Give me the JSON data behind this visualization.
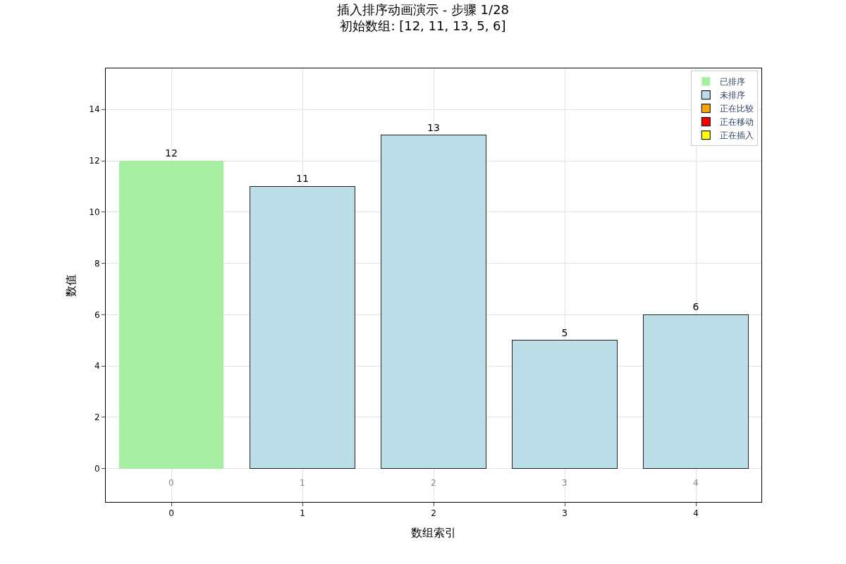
{
  "chart_data": {
    "type": "bar",
    "title": "插入排序动画演示 - 步骤 1/28",
    "subtitle": "初始数组: [12, 11, 13, 5, 6]",
    "xlabel": "数组索引",
    "ylabel": "数值",
    "categories": [
      "0",
      "1",
      "2",
      "3",
      "4"
    ],
    "series": [
      {
        "name": "已排序",
        "color": "#a6eea1",
        "values": [
          12,
          null,
          null,
          null,
          null
        ]
      },
      {
        "name": "未排序",
        "color": "#bcdee8",
        "values": [
          null,
          11,
          13,
          5,
          6
        ]
      },
      {
        "name": "正在比较",
        "color": "#ffa500",
        "values": [
          null,
          null,
          null,
          null,
          null
        ]
      },
      {
        "name": "正在移动",
        "color": "#ff0000",
        "values": [
          null,
          null,
          null,
          null,
          null
        ]
      },
      {
        "name": "正在插入",
        "color": "#ffff00",
        "values": [
          null,
          null,
          null,
          null,
          null
        ]
      }
    ],
    "stacked": true,
    "data_labels": true,
    "annotations": [
      "0",
      "1",
      "2",
      "3",
      "4"
    ],
    "ylim": [
      -1.3,
      15.6
    ],
    "yticks": [
      0,
      2,
      4,
      6,
      8,
      10,
      12,
      14
    ],
    "grid": true,
    "legend": "top right"
  }
}
